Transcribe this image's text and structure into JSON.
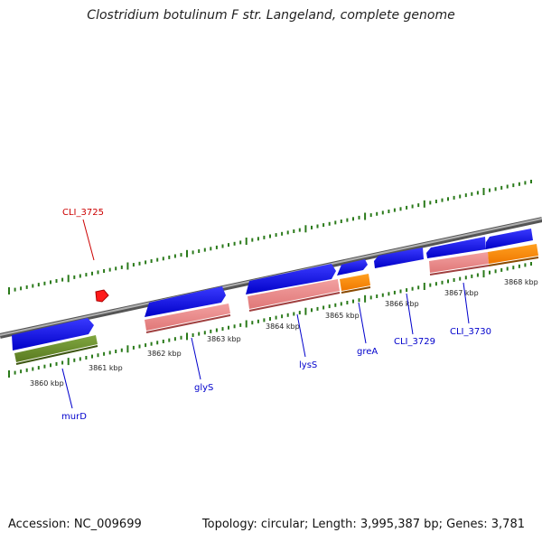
{
  "title": "Clostridium botulinum F str. Langeland, complete genome",
  "footer": {
    "accession": "Accession: NC_009699",
    "summary": "Topology: circular; Length: 3,995,387 bp; Genes: 3,781"
  },
  "colors": {
    "backbone": "#8a8a8a",
    "ruler": "#2a7a1a",
    "cds": "#1010dd",
    "trna_like": "#e88a8a",
    "orange_feature": "#ff8c00",
    "olive_feature": "#6b8e23",
    "highlight": "#ff1a1a",
    "label_blue": "#0000cc",
    "label_red": "#cc0000"
  },
  "diagram": {
    "kbp_labels": [
      "3860 kbp",
      "3861 kbp",
      "3862 kbp",
      "3863 kbp",
      "3864 kbp",
      "3865 kbp",
      "3866 kbp",
      "3867 kbp",
      "3868 kbp"
    ],
    "gene_labels": [
      {
        "text": "CLI_3725",
        "color": "red"
      },
      {
        "text": "murD",
        "color": "blue"
      },
      {
        "text": "glyS",
        "color": "blue"
      },
      {
        "text": "lysS",
        "color": "blue"
      },
      {
        "text": "greA",
        "color": "blue"
      },
      {
        "text": "CLI_3729",
        "color": "blue"
      },
      {
        "text": "CLI_3730",
        "color": "blue"
      }
    ]
  }
}
